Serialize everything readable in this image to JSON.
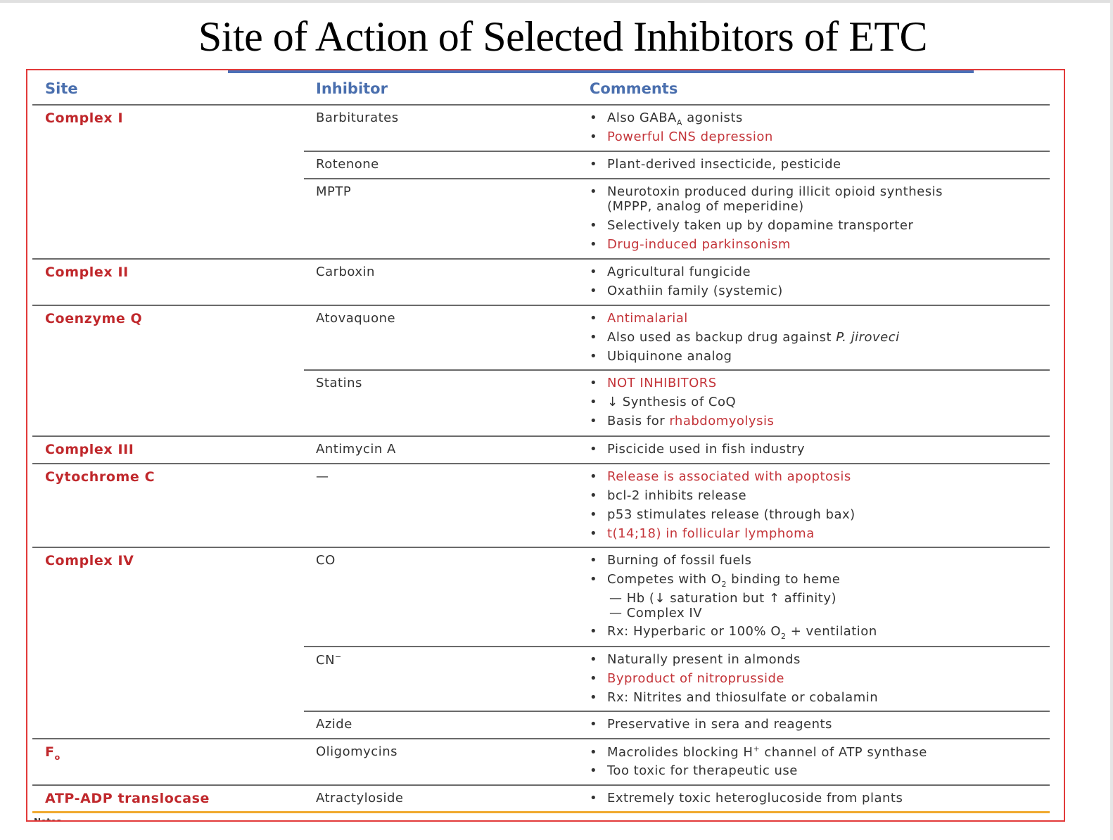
{
  "title": "Site of Action of Selected Inhibitors of ETC",
  "headers": {
    "site": "Site",
    "inhibitor": "Inhibitor",
    "comments": "Comments"
  },
  "colors": {
    "accent_red": "#c0282c",
    "header_blue": "#4a6fae",
    "frame_red": "#e23a3a",
    "orange_rule": "#f0a92e"
  },
  "sites": {
    "complex_i": "Complex I",
    "complex_ii": "Complex II",
    "coenzyme_q": "Coenzyme Q",
    "complex_iii": "Complex III",
    "cytochrome_c": "Cytochrome C",
    "complex_iv": "Complex IV",
    "f_o": "F",
    "f_o_sub": "o",
    "atp_adp": "ATP-ADP translocase"
  },
  "inhibitors": {
    "barbiturates": "Barbiturates",
    "rotenone": "Rotenone",
    "mptp": "MPTP",
    "carboxin": "Carboxin",
    "atovaquone": "Atovaquone",
    "statins": "Statins",
    "antimycin": "Antimycin A",
    "dash": "—",
    "co": "CO",
    "cn": "CN",
    "cn_sup": "−",
    "azide": "Azide",
    "oligomycins": "Oligomycins",
    "atractyloside": "Atractyloside"
  },
  "comments": {
    "barb_1": "Also GABA",
    "barb_1_sub": "A",
    "barb_1_end": " agonists",
    "barb_2": "Powerful CNS depression",
    "rot_1": "Plant-derived insecticide, pesticide",
    "mptp_1": "Neurotoxin produced during illicit opioid synthesis",
    "mptp_1b": "(MPPP, analog of meperidine)",
    "mptp_2": "Selectively taken up by dopamine transporter",
    "mptp_3": "Drug-induced parkinsonism",
    "carb_1": "Agricultural fungicide",
    "carb_2": "Oxathiin family (systemic)",
    "atov_1": "Antimalarial",
    "atov_2": "Also used as backup drug against ",
    "atov_2_italic": "P. jiroveci",
    "atov_3": "Ubiquinone analog",
    "stat_1": "NOT INHIBITORS",
    "stat_2": "↓ Synthesis of CoQ",
    "stat_3": "Basis for ",
    "stat_3_red": "rhabdomyolysis",
    "anti_1": "Piscicide used in fish industry",
    "cyt_1": "Release is associated with apoptosis",
    "cyt_2": "bcl-2 inhibits release",
    "cyt_3": "p53 stimulates release (through bax)",
    "cyt_4": "t(14;18) in follicular lymphoma",
    "co_1": "Burning of fossil fuels",
    "co_2": "Competes with O",
    "co_2_sub": "2",
    "co_2_end": " binding to heme",
    "co_2a": "— Hb (↓ saturation but ↑ affinity)",
    "co_2b": "— Complex IV",
    "co_3": "Rx: Hyperbaric or 100% O",
    "co_3_sub": "2",
    "co_3_end": " + ventilation",
    "cn_1": "Naturally present in almonds",
    "cn_2": "Byproduct of nitroprusside",
    "cn_3": "Rx: Nitrites and thiosulfate or cobalamin",
    "azide_1": "Preservative in sera and reagents",
    "olig_1": "Macrolides blocking H",
    "olig_1_sup": "+",
    "olig_1_end": " channel of ATP synthase",
    "olig_2": "Too toxic for therapeutic use",
    "atr_1": "Extremely toxic heteroglucoside from plants"
  },
  "bullet": "•",
  "notes_label": "Notes"
}
